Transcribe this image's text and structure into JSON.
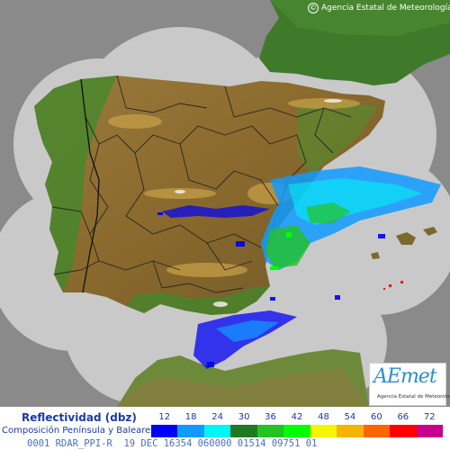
{
  "copyright": "Agencia Estatal de Meteorología",
  "logo": {
    "mark": "AEmet",
    "subtitle": "Agencia Estatal de Meteorología"
  },
  "legend": {
    "title": "Reflectividad (dbz)",
    "subtitle": "Composición Península y Baleares",
    "ticks": [
      "12",
      "18",
      "24",
      "30",
      "36",
      "42",
      "48",
      "54",
      "60",
      "66",
      "72"
    ],
    "colors": [
      "#0000f5",
      "#0f9bff",
      "#00f5f5",
      "#1f7a1f",
      "#23c323",
      "#00ff00",
      "#f5f500",
      "#f5b400",
      "#ff6400",
      "#ff0000",
      "#c8008c"
    ]
  },
  "status_line": "0001 RDAR_PPI-R  19 DEC 16354 060000 01514 09751 01"
}
